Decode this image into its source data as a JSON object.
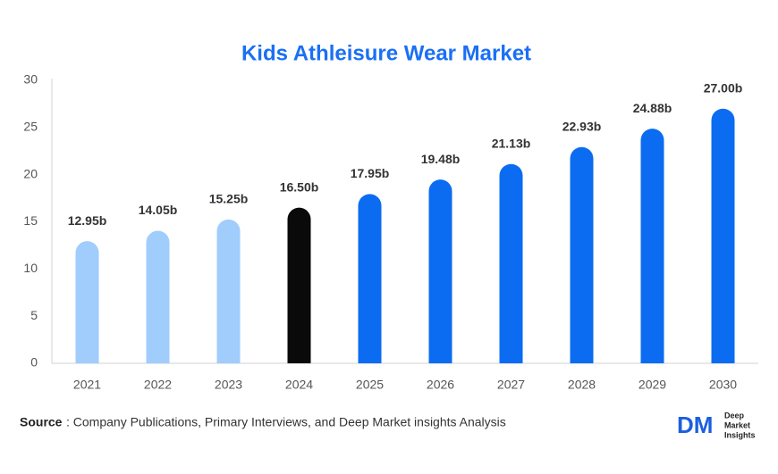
{
  "chart_data": {
    "type": "bar",
    "title": "Kids Athleisure Wear Market",
    "categories": [
      "2021",
      "2022",
      "2023",
      "2024",
      "2025",
      "2026",
      "2027",
      "2028",
      "2029",
      "2030"
    ],
    "values": [
      12.95,
      14.05,
      15.25,
      16.5,
      17.95,
      19.48,
      21.13,
      22.93,
      24.88,
      27.0
    ],
    "value_labels": [
      "12.95b",
      "14.05b",
      "15.25b",
      "16.50b",
      "17.95b",
      "19.48b",
      "21.13b",
      "22.93b",
      "24.88b",
      "27.00b"
    ],
    "colors": [
      "#a0cdfb",
      "#a0cdfb",
      "#a0cdfb",
      "#0a0a0a",
      "#0b6cf1",
      "#0b6cf1",
      "#0b6cf1",
      "#0b6cf1",
      "#0b6cf1",
      "#0b6cf1"
    ],
    "ylim": [
      0,
      30
    ],
    "yticks": [
      0,
      5,
      10,
      15,
      20,
      25,
      30
    ],
    "grid": false
  },
  "footer": {
    "source_label": "Source",
    "source_text": ": Company Publications, Primary Interviews, and Deep Market insights Analysis",
    "logo_mark": "DM",
    "logo_text": [
      "Deep",
      "Market",
      "Insights"
    ]
  }
}
